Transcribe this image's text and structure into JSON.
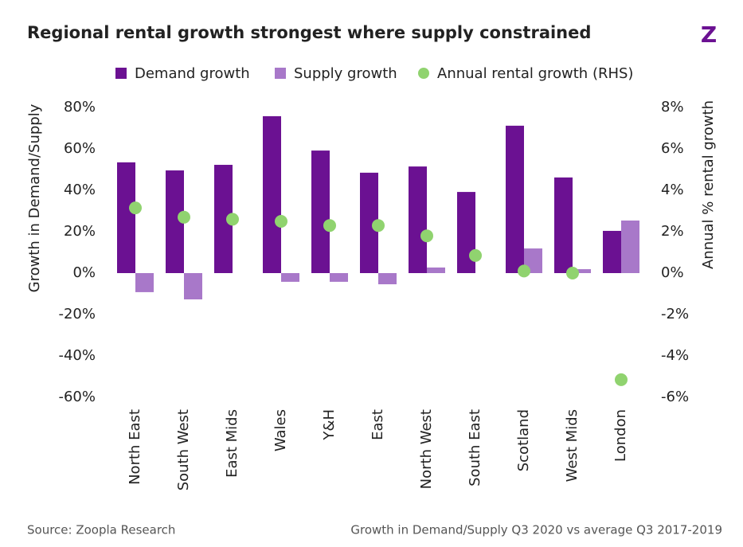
{
  "chart_data": {
    "type": "bar",
    "title": "Regional rental growth strongest where supply constrained",
    "logo": "Z",
    "y_label": "Growth in Demand/Supply",
    "y2_label": "Annual % rental growth",
    "source": "Source: Zoopla Research",
    "note": "Growth in Demand/Supply Q3 2020 vs average Q3 2017-2019",
    "legend_position": "top",
    "categories": [
      "North East",
      "South West",
      "East Mids",
      "Wales",
      "Y&H",
      "East",
      "North West",
      "South East",
      "Scotland",
      "West Mids",
      "London"
    ],
    "series": [
      {
        "name": "Demand growth",
        "type": "bar",
        "color": "#6b1192",
        "values": [
          53.5,
          49.6,
          52.3,
          75.8,
          59.2,
          48.5,
          51.5,
          39.2,
          71.2,
          46.2,
          20.4
        ]
      },
      {
        "name": "Supply growth",
        "type": "bar",
        "color": "#a878c9",
        "values": [
          -9.2,
          -12.7,
          0,
          -4.2,
          -4.2,
          -5.4,
          2.7,
          0,
          11.9,
          1.9,
          25.4
        ]
      },
      {
        "name": "Annual rental growth (RHS)",
        "type": "scatter",
        "axis": "y2",
        "color": "#90d36f",
        "values": [
          3.15,
          2.7,
          2.6,
          2.5,
          2.3,
          2.3,
          1.8,
          0.85,
          0.1,
          0.0,
          -5.15
        ]
      }
    ],
    "ylim": [
      -60,
      80
    ],
    "yticks": [
      {
        "value": -60,
        "label": "-60%"
      },
      {
        "value": -40,
        "label": "-40%"
      },
      {
        "value": -20,
        "label": "-20%"
      },
      {
        "value": 0,
        "label": "0%"
      },
      {
        "value": 20,
        "label": "20%"
      },
      {
        "value": 40,
        "label": "40%"
      },
      {
        "value": 60,
        "label": "60%"
      },
      {
        "value": 80,
        "label": "80%"
      }
    ],
    "y2lim": [
      -6,
      8
    ],
    "y2ticks": [
      {
        "value": -6,
        "label": "-6%"
      },
      {
        "value": -4,
        "label": "-4%"
      },
      {
        "value": -2,
        "label": "-2%"
      },
      {
        "value": 0,
        "label": "0%"
      },
      {
        "value": 2,
        "label": "2%"
      },
      {
        "value": 4,
        "label": "4%"
      },
      {
        "value": 6,
        "label": "6%"
      },
      {
        "value": 8,
        "label": "8%"
      }
    ],
    "grid": false
  }
}
